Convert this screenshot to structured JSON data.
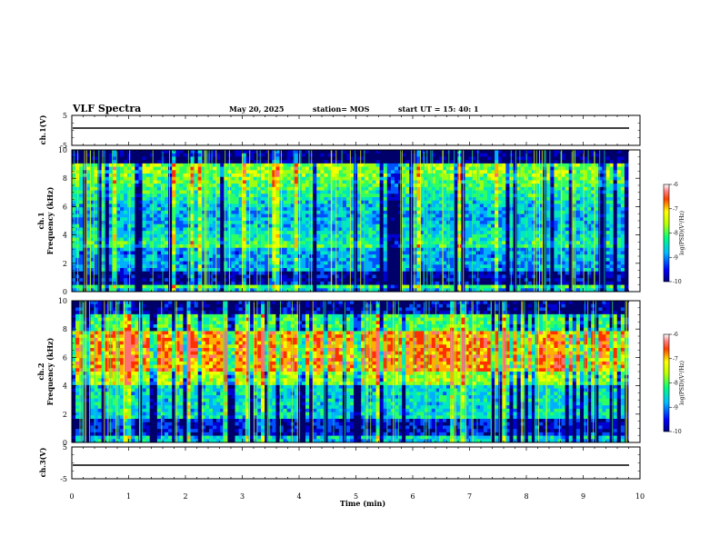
{
  "header": {
    "title": "VLF Spectra",
    "date": "May 20, 2025",
    "station": "station= MOS",
    "start": "start UT =   15: 40: 1"
  },
  "chart_data": [
    {
      "type": "line",
      "panel": "ch1_voltage",
      "ylabel": "ch.1(V)",
      "ylim": [
        -5,
        5
      ],
      "yticks": [
        "5",
        "-5"
      ],
      "x": [
        0,
        9.8
      ],
      "values": [
        0,
        0
      ]
    },
    {
      "type": "heatmap",
      "panel": "ch1_spectrogram",
      "ylabel": "ch.1\nFrequency (kHz)",
      "ylim": [
        0,
        10
      ],
      "yticks": [
        "0",
        "2",
        "4",
        "6",
        "8",
        "10"
      ],
      "colorbar": {
        "label": "log(PSD)(V²/Hz)",
        "range": [
          -10,
          -6
        ],
        "ticks": [
          "-6",
          "-7",
          "-8",
          "-9",
          "-10"
        ]
      }
    },
    {
      "type": "heatmap",
      "panel": "ch2_spectrogram",
      "ylabel": "ch.2\nFrequency (kHz)",
      "ylim": [
        0,
        10
      ],
      "yticks": [
        "0",
        "2",
        "4",
        "6",
        "8",
        "10"
      ],
      "colorbar": {
        "label": "log(PSD)(V²/Hz)",
        "range": [
          -10,
          -6
        ],
        "ticks": [
          "-6",
          "-7",
          "-8",
          "-9",
          "-10"
        ]
      }
    },
    {
      "type": "line",
      "panel": "ch3_voltage",
      "ylabel": "ch.3(V)",
      "ylim": [
        -5,
        5
      ],
      "yticks": [
        "5",
        "-5"
      ],
      "x": [
        0,
        9.8
      ],
      "values": [
        0,
        0
      ]
    }
  ],
  "xaxis": {
    "label": "Time (min)",
    "range": [
      0,
      10
    ],
    "ticks": [
      "0",
      "1",
      "2",
      "3",
      "4",
      "5",
      "6",
      "7",
      "8",
      "9",
      "10"
    ]
  },
  "colors": {
    "colormap": [
      "#00007f",
      "#0000ff",
      "#00bfff",
      "#00ff7f",
      "#bfff00",
      "#ffff00",
      "#ff7f00",
      "#ff0000",
      "#ffb0b0",
      "#ffffff"
    ]
  }
}
